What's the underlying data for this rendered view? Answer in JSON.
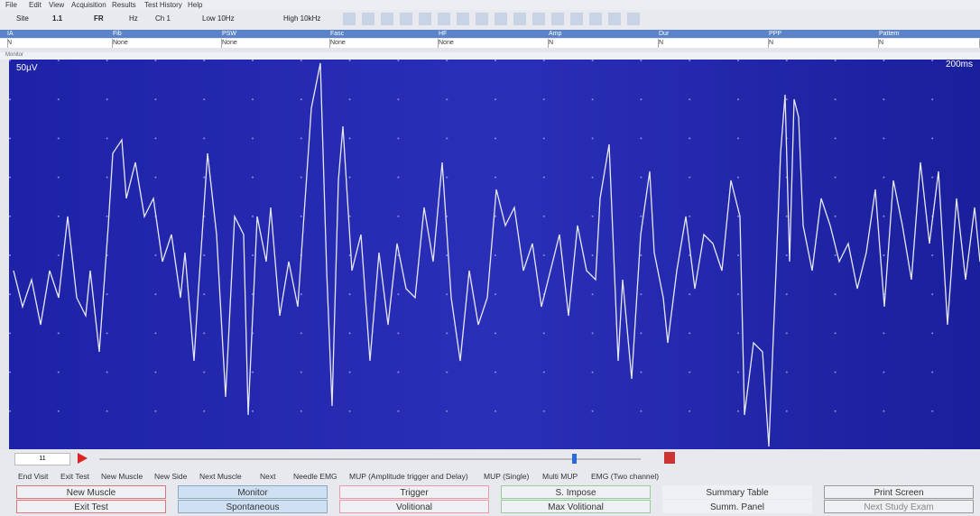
{
  "menu": [
    "File",
    "Edit",
    "View",
    "Acquisition",
    "Results",
    "Test History",
    "Help"
  ],
  "toolbar": {
    "site_label": "Site",
    "site": "1.1",
    "side": "FR",
    "hz": "Hz",
    "channel": "Ch 1",
    "low": "Low 10Hz",
    "high": "High 10kHz"
  },
  "table": {
    "headers": [
      "IA",
      "Fib",
      "PSW",
      "Fasc",
      "HF",
      "Amp",
      "Dur",
      "PPP",
      "Pattern"
    ],
    "values": [
      "N",
      "None",
      "None",
      "None",
      "None",
      "N",
      "N",
      "N",
      "N"
    ]
  },
  "mode": "Monitor",
  "trace": {
    "sensitivity": "50µV",
    "sweep": "200ms"
  },
  "status": {
    "counter": "11"
  },
  "function_keys": [
    "End Visit",
    "Exit Test",
    "New Muscle",
    "New Side",
    "Next Muscle",
    "Next",
    "Needle EMG",
    "MUP (Amplitude trigger and Delay)",
    "MUP (Single)",
    "Multi MUP",
    "EMG (Two channel)"
  ],
  "buttons": [
    [
      "New Muscle",
      "Exit Test"
    ],
    [
      "Monitor",
      "Spontaneous"
    ],
    [
      "Trigger",
      "Volitional"
    ],
    [
      "S. Impose",
      "Max Volitional"
    ],
    [
      "Summary Table",
      "Summ. Panel"
    ],
    [
      "Print Screen",
      "Next Study Exam"
    ]
  ]
}
